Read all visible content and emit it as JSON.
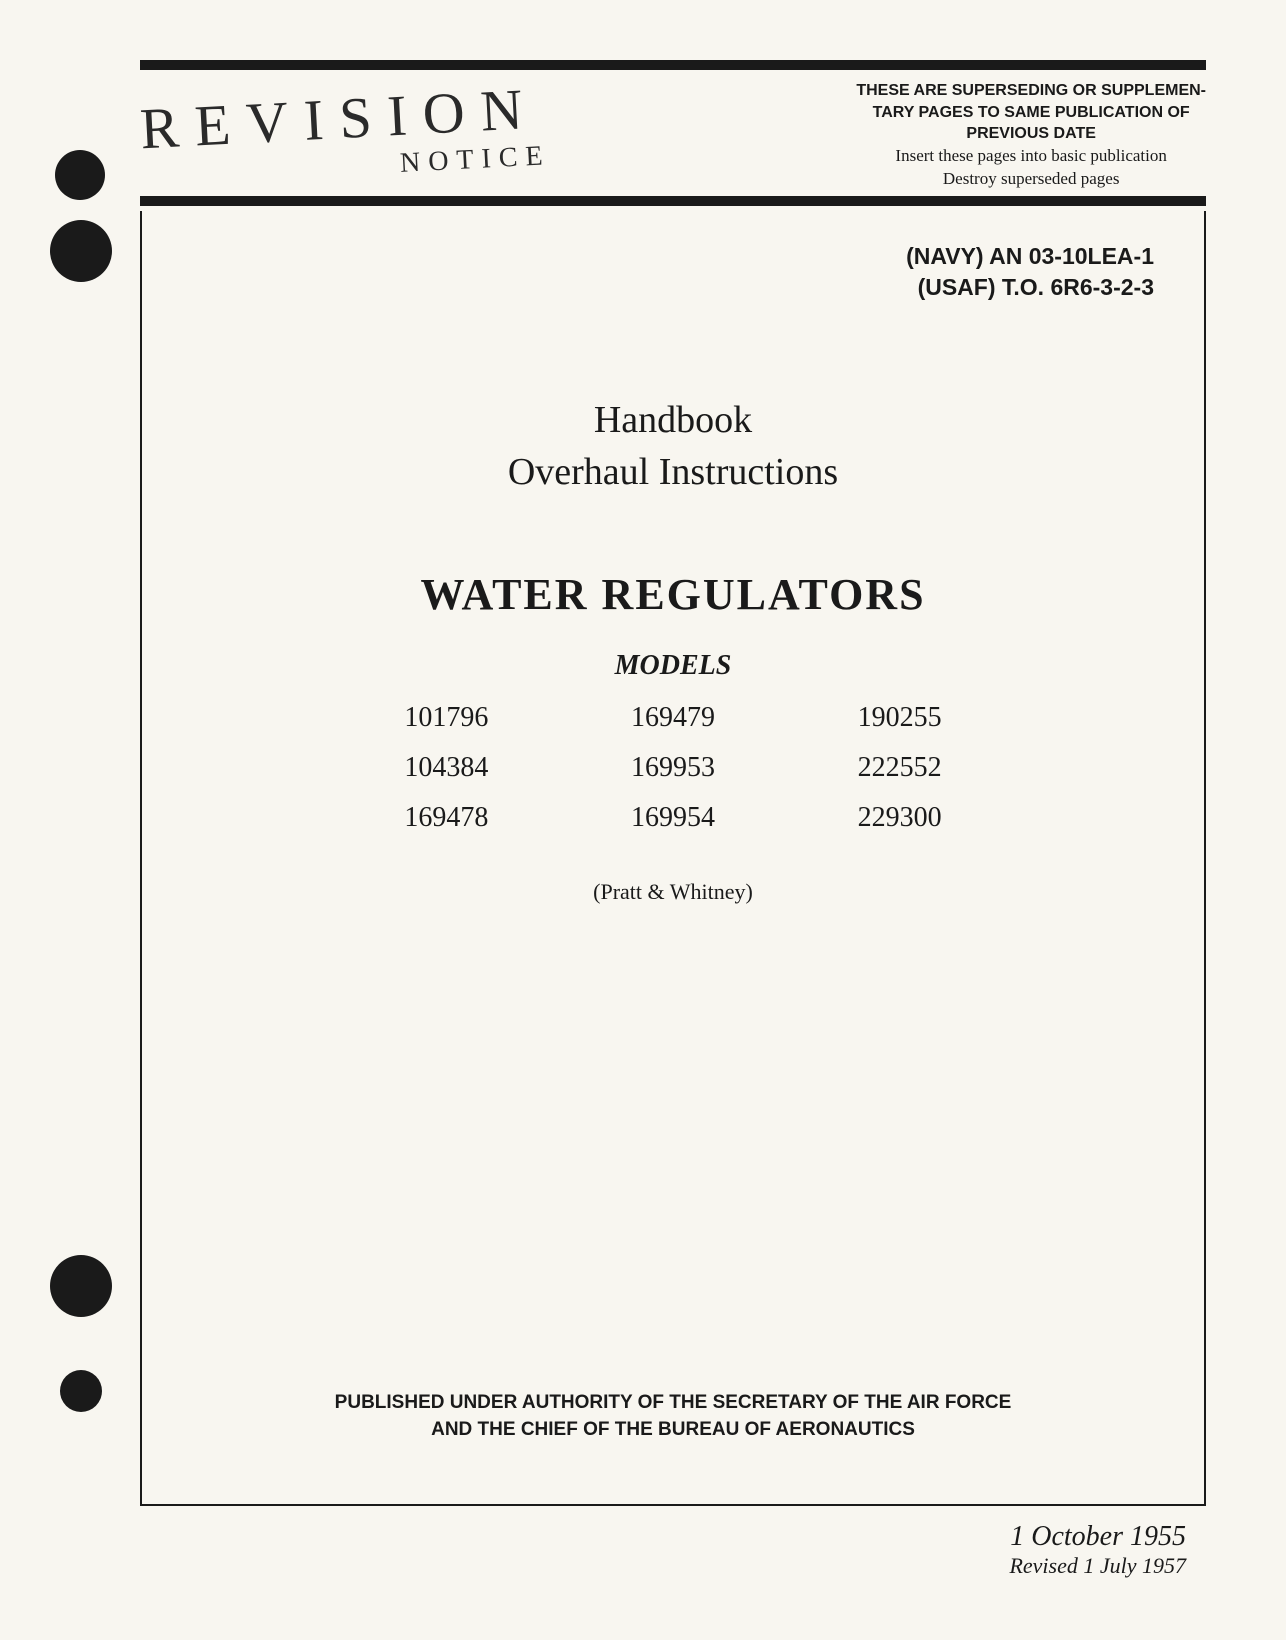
{
  "colors": {
    "background": "#f8f6f0",
    "text": "#1a1a1a",
    "rule": "#1a1a1a"
  },
  "header": {
    "revision": "REVISION",
    "notice": "NOTICE",
    "supplementary": {
      "line1": "THESE ARE SUPERSEDING OR SUPPLEMEN-",
      "line2": "TARY PAGES TO SAME PUBLICATION OF",
      "line3": "PREVIOUS DATE",
      "line4": "Insert these pages into basic publication",
      "line5": "Destroy superseded pages"
    }
  },
  "doc_numbers": {
    "navy": "(NAVY) AN 03-10LEA-1",
    "usaf": "(USAF) T.O. 6R6-3-2-3"
  },
  "title": {
    "line1": "Handbook",
    "line2": "Overhaul Instructions",
    "main": "WATER REGULATORS",
    "models_label": "MODELS"
  },
  "models": [
    "101796",
    "169479",
    "190255",
    "104384",
    "169953",
    "222552",
    "169478",
    "169954",
    "229300"
  ],
  "manufacturer": "(Pratt & Whitney)",
  "authority": {
    "line1": "PUBLISHED UNDER AUTHORITY OF THE SECRETARY OF THE AIR FORCE",
    "line2": "AND THE CHIEF OF THE BUREAU OF AERONAUTICS"
  },
  "dates": {
    "original": "1 October 1955",
    "revised": "Revised 1 July 1957"
  }
}
